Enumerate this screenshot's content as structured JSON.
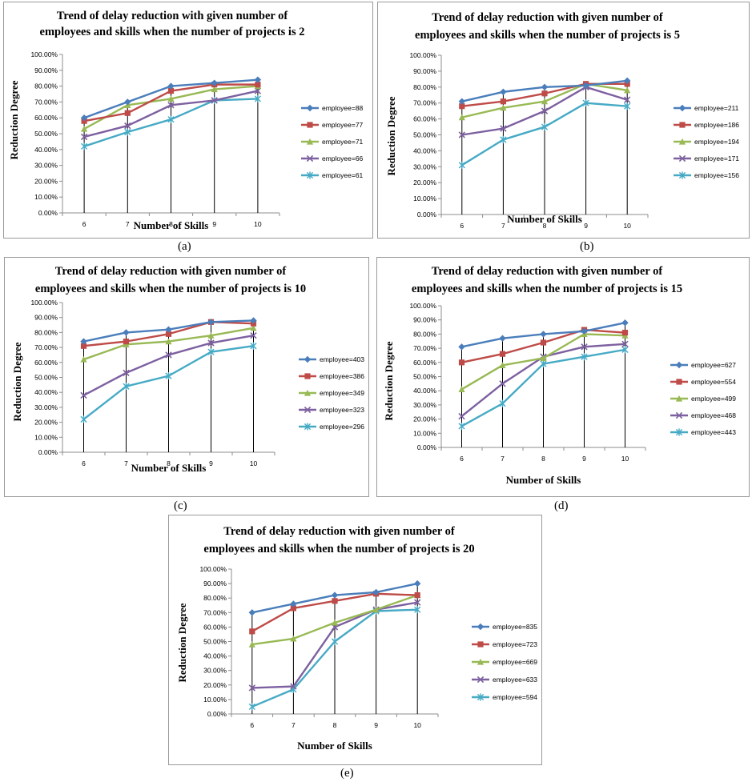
{
  "captions": [
    "(a)",
    "(b)",
    "(c)",
    "(d)",
    "(e)"
  ],
  "colors": {
    "series": [
      "#4a7ebb",
      "#be4b48",
      "#98b954",
      "#7d60a0",
      "#46aac5"
    ],
    "axis": "#8c8c8c",
    "frame": "#9a9a9a"
  },
  "markers": [
    "diamond",
    "square",
    "triangle",
    "x",
    "star"
  ],
  "chart_data": [
    {
      "type": "line",
      "title": [
        "Trend of delay reduction with given number of",
        "employees and skills when the number of projects is 2"
      ],
      "xlabel": "Number of Skills",
      "ylabel": "Reduction Degree",
      "categories": [
        "6",
        "7",
        "8",
        "9",
        "10"
      ],
      "yticks": [
        "0.00%",
        "10.00%",
        "20.00%",
        "30.00%",
        "40.00%",
        "50.00%",
        "60.00%",
        "70.00%",
        "80.00%",
        "90.00%",
        "100.00%"
      ],
      "ylim": [
        0,
        100
      ],
      "grid": false,
      "legend_position": "right",
      "series": [
        {
          "name": "employee=88",
          "values": [
            60,
            70,
            80,
            82,
            84
          ]
        },
        {
          "name": "employee=77",
          "values": [
            58,
            63,
            77,
            81,
            81
          ]
        },
        {
          "name": "employee=71",
          "values": [
            53,
            68,
            72,
            78,
            80
          ]
        },
        {
          "name": "employee=66",
          "values": [
            48,
            55,
            68,
            71,
            77
          ]
        },
        {
          "name": "employee=61",
          "values": [
            42,
            51,
            59,
            71,
            72
          ]
        }
      ]
    },
    {
      "type": "line",
      "title": [
        "Trend of delay reduction with given number of",
        "employees and skills when the number of projects is 5"
      ],
      "xlabel": "Number of Skills",
      "ylabel": "Reduction Degree",
      "categories": [
        "6",
        "7",
        "8",
        "9",
        "10"
      ],
      "yticks": [
        "0.00%",
        "10.00%",
        "20.00%",
        "30.00%",
        "40.00%",
        "50.00%",
        "60.00%",
        "70.00%",
        "80.00%",
        "90.00%",
        "100.00%"
      ],
      "ylim": [
        0,
        100
      ],
      "grid": false,
      "legend_position": "right",
      "series": [
        {
          "name": "employee=211",
          "values": [
            71,
            77,
            80,
            81,
            84
          ]
        },
        {
          "name": "employee=186",
          "values": [
            68,
            71,
            76,
            82,
            82
          ]
        },
        {
          "name": "employee=194",
          "values": [
            61,
            67,
            71,
            82,
            78
          ]
        },
        {
          "name": "employee=171",
          "values": [
            50,
            54,
            65,
            80,
            72
          ]
        },
        {
          "name": "employee=156",
          "values": [
            31,
            47,
            55,
            70,
            68
          ]
        }
      ]
    },
    {
      "type": "line",
      "title": [
        "Trend of delay reduction with given number of",
        "employees and skills when the number of projects is 10"
      ],
      "xlabel": "Number of Skills",
      "ylabel": "Reduction Degree",
      "categories": [
        "6",
        "7",
        "8",
        "9",
        "10"
      ],
      "yticks": [
        "0.00%",
        "10.00%",
        "20.00%",
        "30.00%",
        "40.00%",
        "50.00%",
        "60.00%",
        "70.00%",
        "80.00%",
        "90.00%",
        "100.00%"
      ],
      "ylim": [
        0,
        100
      ],
      "grid": false,
      "legend_position": "right",
      "series": [
        {
          "name": "employee=403",
          "values": [
            74,
            80,
            82,
            87,
            88
          ]
        },
        {
          "name": "employee=386",
          "values": [
            71,
            74,
            79,
            87,
            86
          ]
        },
        {
          "name": "employee=349",
          "values": [
            62,
            72,
            74,
            78,
            83
          ]
        },
        {
          "name": "employee=323",
          "values": [
            38,
            53,
            65,
            73,
            78
          ]
        },
        {
          "name": "employee=296",
          "values": [
            22,
            44,
            51,
            67,
            71
          ]
        }
      ]
    },
    {
      "type": "line",
      "title": [
        "Trend of delay reduction with given number of",
        "employees and skills when the number of projects is 15"
      ],
      "xlabel": "Number of Skills",
      "ylabel": "Reduction Degree",
      "categories": [
        "6",
        "7",
        "8",
        "9",
        "10"
      ],
      "yticks": [
        "0.00%",
        "10.00%",
        "20.00%",
        "30.00%",
        "40.00%",
        "50.00%",
        "60.00%",
        "70.00%",
        "80.00%",
        "90.00%",
        "100.00%"
      ],
      "ylim": [
        0,
        100
      ],
      "grid": false,
      "legend_position": "right",
      "series": [
        {
          "name": "employee=627",
          "values": [
            71,
            77,
            80,
            82,
            88
          ]
        },
        {
          "name": "employee=554",
          "values": [
            60,
            66,
            74,
            83,
            81
          ]
        },
        {
          "name": "employee=499",
          "values": [
            41,
            58,
            63,
            80,
            79
          ]
        },
        {
          "name": "employee=468",
          "values": [
            22,
            45,
            64,
            71,
            73
          ]
        },
        {
          "name": "employee=443",
          "values": [
            15,
            31,
            59,
            64,
            69
          ]
        }
      ]
    },
    {
      "type": "line",
      "title": [
        "Trend of delay reduction with given number of",
        "employees and skills when the number of projects is 20"
      ],
      "xlabel": "Number of Skills",
      "ylabel": "Reduction Degree",
      "categories": [
        "6",
        "7",
        "8",
        "9",
        "10"
      ],
      "yticks": [
        "0.00%",
        "10.00%",
        "20.00%",
        "30.00%",
        "40.00%",
        "50.00%",
        "60.00%",
        "70.00%",
        "80.00%",
        "90.00%",
        "100.00%"
      ],
      "ylim": [
        0,
        100
      ],
      "grid": false,
      "legend_position": "right",
      "series": [
        {
          "name": "employee=835",
          "values": [
            70,
            76,
            82,
            84,
            90
          ]
        },
        {
          "name": "employee=723",
          "values": [
            57,
            73,
            78,
            83,
            82
          ]
        },
        {
          "name": "employee=669",
          "values": [
            48,
            52,
            63,
            72,
            82
          ]
        },
        {
          "name": "employee=633",
          "values": [
            18,
            19,
            60,
            72,
            77
          ]
        },
        {
          "name": "employee=594",
          "values": [
            5,
            17,
            50,
            71,
            72
          ]
        }
      ]
    }
  ]
}
